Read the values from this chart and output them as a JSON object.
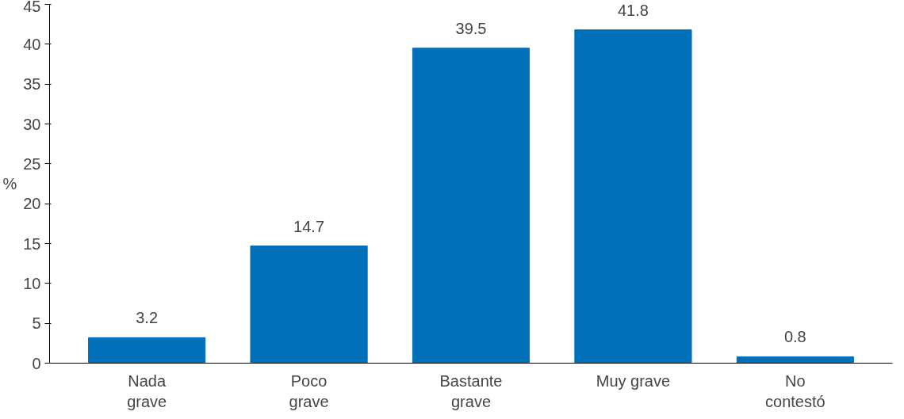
{
  "chart_data": {
    "type": "bar",
    "ylabel": "%",
    "categories": [
      "Nada\ngrave",
      "Poco\ngrave",
      "Bastante\ngrave",
      "Muy grave",
      "No\ncontestó"
    ],
    "values": [
      3.2,
      14.7,
      39.5,
      41.8,
      0.8
    ],
    "color": "#0070b8",
    "ylim": [
      0,
      45
    ],
    "yticks": [
      0,
      5,
      10,
      15,
      20,
      25,
      30,
      35,
      40,
      45
    ],
    "data_labels": true,
    "grid": false
  }
}
